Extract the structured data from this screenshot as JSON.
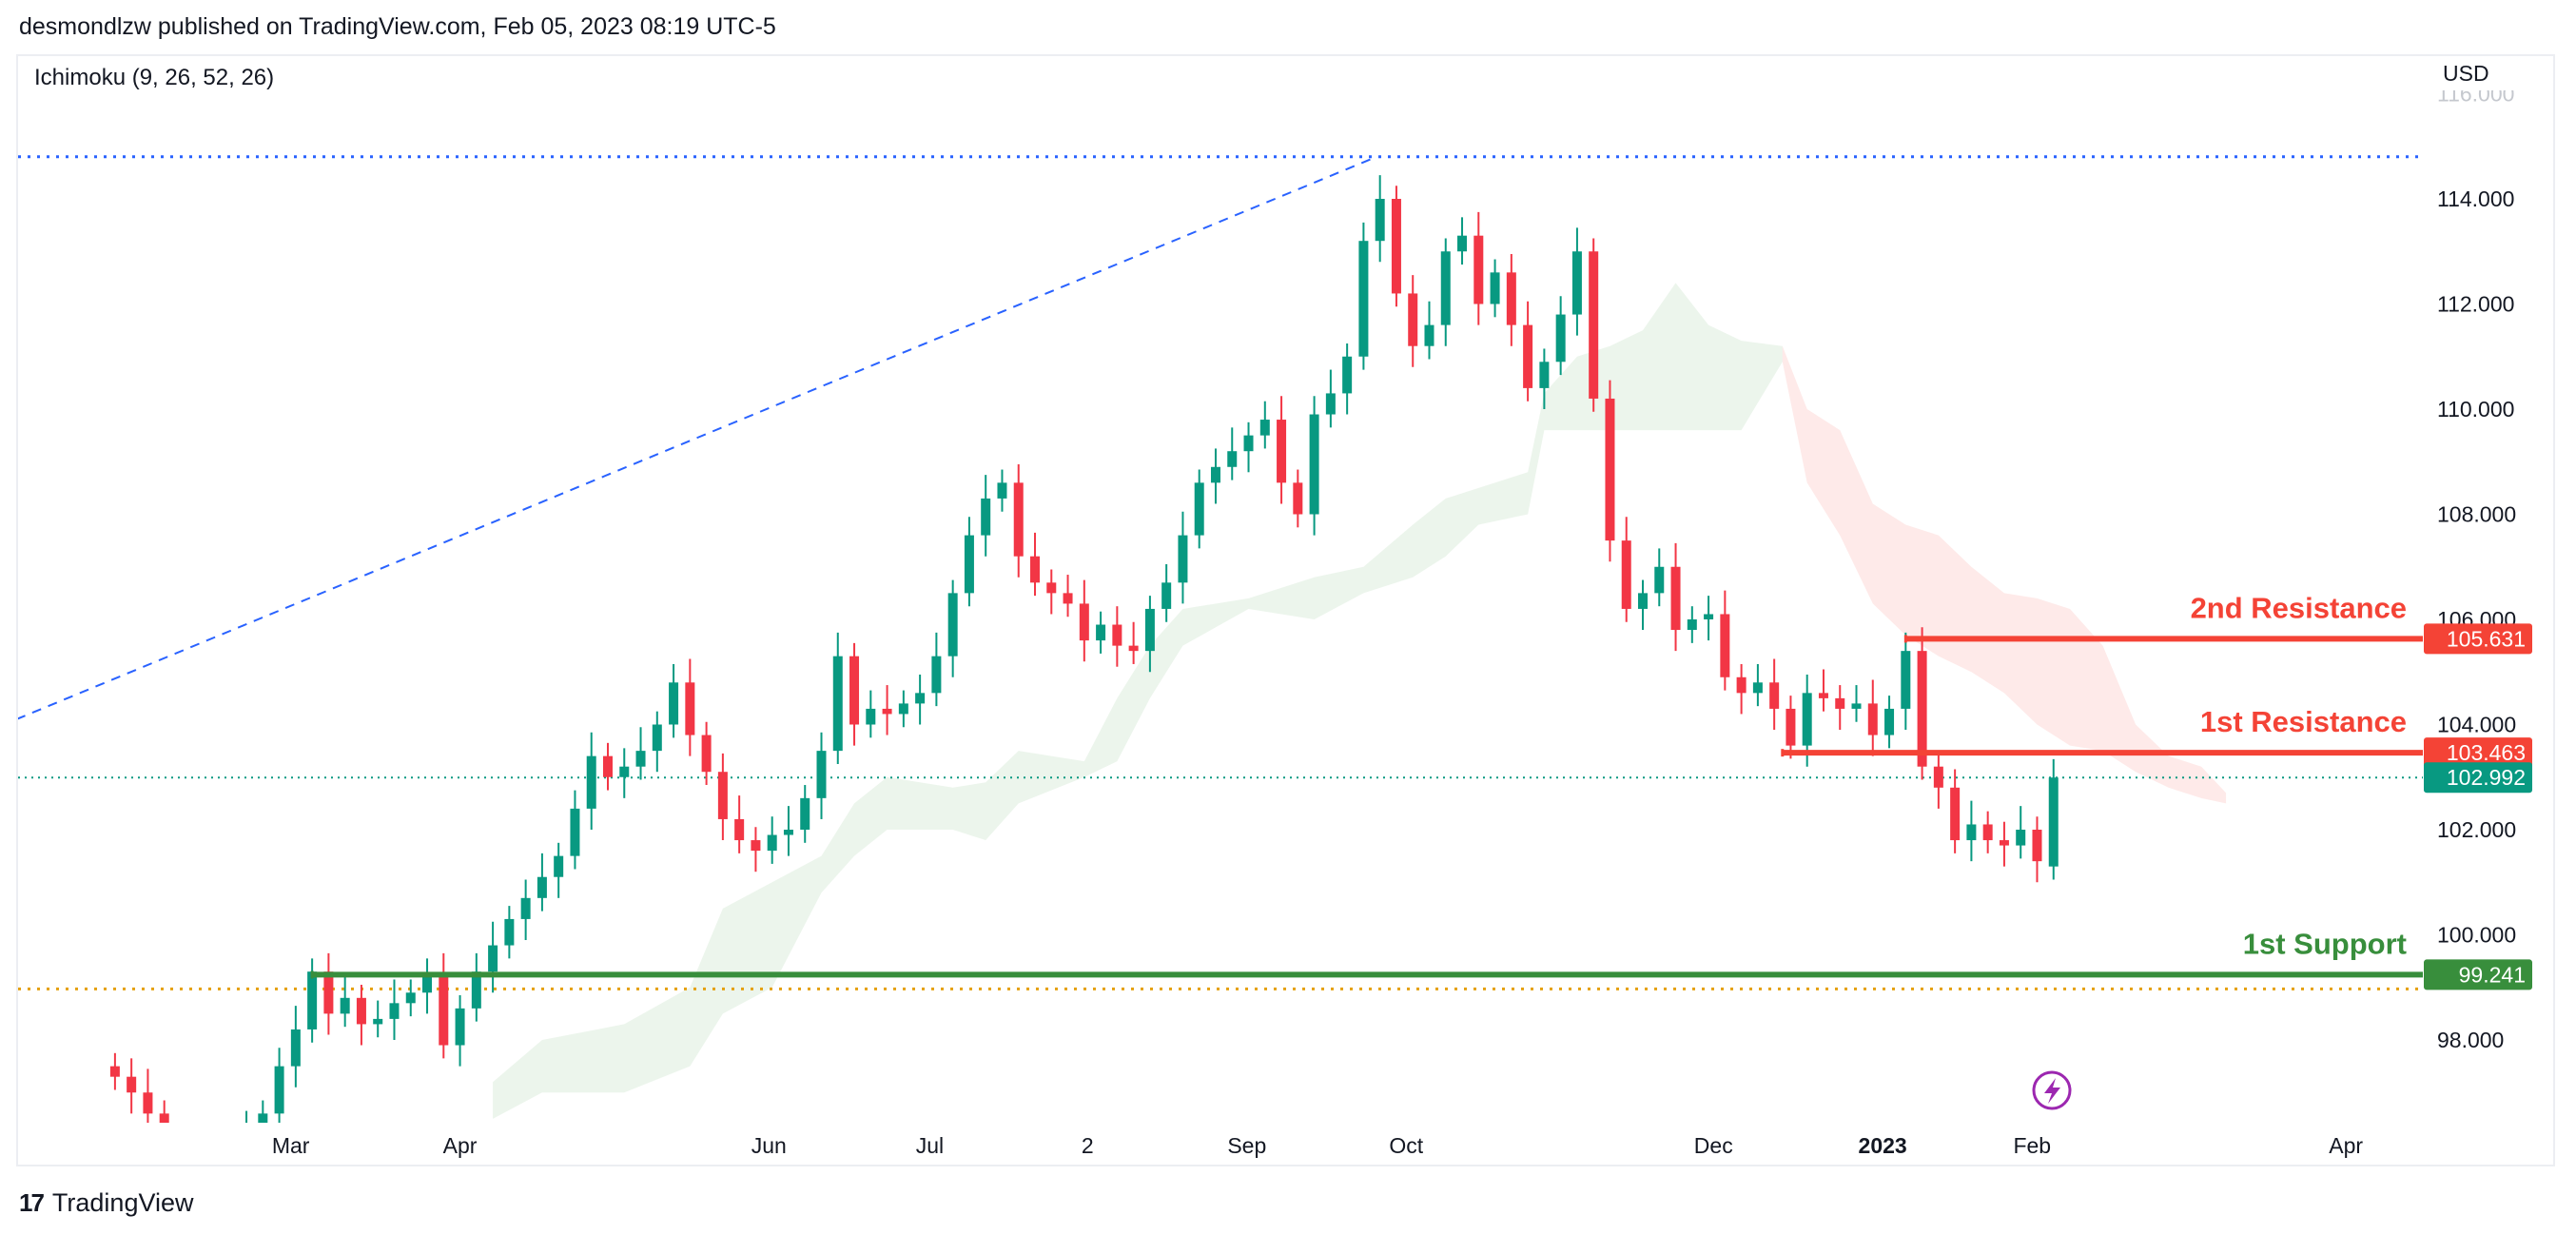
{
  "header": {
    "published": "desmondlzw published on TradingView.com, Feb 05, 2023 08:19 UTC-5"
  },
  "indicator": {
    "label": "Ichimoku (9, 26, 52, 26)"
  },
  "footer": {
    "brand": "TradingView",
    "logo_text": "17"
  },
  "colors": {
    "up": "#089981",
    "down": "#F23645",
    "resistance": "#F44336",
    "support": "#388E3C",
    "trend": "#2962FF",
    "orange": "#E5A00D",
    "last": "#089981",
    "cloud_green": "rgba(67,160,71,0.10)",
    "cloud_red": "rgba(244,67,54,0.11)",
    "event": "#9C27B0"
  },
  "chart_data": {
    "type": "candlestick",
    "currency": "USD",
    "y_ticks": [
      "116.000",
      "114.000",
      "112.000",
      "110.000",
      "108.000",
      "106.000",
      "104.000",
      "102.000",
      "100.000",
      "98.000"
    ],
    "y_tick_values": [
      116,
      114,
      112,
      110,
      108,
      106,
      104,
      102,
      100,
      98
    ],
    "ylim": [
      96.5,
      116.3
    ],
    "x_ticks": [
      {
        "label": "Mar",
        "pos": 177,
        "bold": false
      },
      {
        "label": "Apr",
        "pos": 280,
        "bold": false
      },
      {
        "label": "Jun",
        "pos": 468,
        "bold": false
      },
      {
        "label": "Jul",
        "pos": 566,
        "bold": false
      },
      {
        "label": "2",
        "pos": 662,
        "bold": false
      },
      {
        "label": "Sep",
        "pos": 759,
        "bold": false
      },
      {
        "label": "Oct",
        "pos": 856,
        "bold": false
      },
      {
        "label": "Dec",
        "pos": 1043,
        "bold": false
      },
      {
        "label": "2023",
        "pos": 1146,
        "bold": true
      },
      {
        "label": "Feb",
        "pos": 1237,
        "bold": false
      },
      {
        "label": "Apr",
        "pos": 1428,
        "bold": false
      }
    ],
    "bar_start": 70,
    "bar_step": 10,
    "closes": [
      97.3,
      97.0,
      96.6,
      96.0,
      95.8,
      95.5,
      95.7,
      95.9,
      96.2,
      96.6,
      97.5,
      98.2,
      99.3,
      98.5,
      98.8,
      98.3,
      98.4,
      98.7,
      98.9,
      99.2,
      97.9,
      98.6,
      99.3,
      99.8,
      100.3,
      100.7,
      101.1,
      101.5,
      102.4,
      103.4,
      103.0,
      103.2,
      103.5,
      104.0,
      104.8,
      103.8,
      103.1,
      102.2,
      101.8,
      101.6,
      101.9,
      102.0,
      102.6,
      103.5,
      105.3,
      104.0,
      104.3,
      104.2,
      104.4,
      104.6,
      105.3,
      106.5,
      107.6,
      108.3,
      108.6,
      107.2,
      106.7,
      106.5,
      106.3,
      105.6,
      105.9,
      105.5,
      105.4,
      106.2,
      106.7,
      107.6,
      108.6,
      108.9,
      109.2,
      109.5,
      109.8,
      108.6,
      108.0,
      109.9,
      110.3,
      111.0,
      113.2,
      114.0,
      112.2,
      111.2,
      111.6,
      113.0,
      113.3,
      112.0,
      112.6,
      111.6,
      110.4,
      110.9,
      111.8,
      113.0,
      110.2,
      107.5,
      106.2,
      106.5,
      107.0,
      105.8,
      106.0,
      106.1,
      104.9,
      104.6,
      104.8,
      104.3,
      103.6,
      104.6,
      104.5,
      104.3,
      104.4,
      103.8,
      104.3,
      105.4,
      103.2,
      102.8,
      101.8,
      102.1,
      101.8,
      101.7,
      102.0,
      101.4,
      102.992
    ],
    "cloud_green": [
      [
        300,
        96.5,
        97.2
      ],
      [
        330,
        97.0,
        98.0
      ],
      [
        380,
        97.0,
        98.3
      ],
      [
        420,
        97.5,
        99.0
      ],
      [
        440,
        98.5,
        100.5
      ],
      [
        470,
        99.0,
        101.0
      ],
      [
        500,
        100.8,
        101.5
      ],
      [
        520,
        101.5,
        102.5
      ],
      [
        540,
        102.0,
        103.0
      ],
      [
        580,
        102.0,
        102.8
      ],
      [
        600,
        101.8,
        102.9
      ],
      [
        620,
        102.5,
        103.5
      ],
      [
        660,
        103.0,
        103.3
      ],
      [
        680,
        103.3,
        104.5
      ],
      [
        700,
        104.5,
        105.5
      ],
      [
        720,
        105.5,
        106.2
      ],
      [
        760,
        106.2,
        106.4
      ],
      [
        800,
        106.0,
        106.8
      ],
      [
        830,
        106.5,
        107.0
      ],
      [
        860,
        106.8,
        107.8
      ],
      [
        880,
        107.2,
        108.3
      ],
      [
        900,
        107.8,
        108.5
      ],
      [
        930,
        108.0,
        108.8
      ],
      [
        940,
        109.6,
        110.3
      ],
      [
        960,
        109.6,
        111.0
      ],
      [
        980,
        109.6,
        111.2
      ],
      [
        1000,
        109.6,
        111.5
      ],
      [
        1020,
        109.6,
        112.4
      ],
      [
        1040,
        109.6,
        111.6
      ],
      [
        1060,
        109.6,
        111.3
      ],
      [
        1085,
        110.9,
        111.2
      ]
    ],
    "cloud_red": [
      [
        1085,
        110.9,
        111.2
      ],
      [
        1100,
        108.6,
        110.0
      ],
      [
        1120,
        107.6,
        109.6
      ],
      [
        1140,
        106.3,
        108.2
      ],
      [
        1160,
        105.7,
        107.8
      ],
      [
        1180,
        105.3,
        107.6
      ],
      [
        1200,
        105.0,
        107.0
      ],
      [
        1220,
        104.6,
        106.5
      ],
      [
        1240,
        104.0,
        106.4
      ],
      [
        1260,
        103.6,
        106.2
      ],
      [
        1280,
        103.5,
        105.5
      ],
      [
        1300,
        103.1,
        104.0
      ],
      [
        1320,
        102.8,
        103.4
      ],
      [
        1340,
        102.6,
        103.2
      ],
      [
        1355,
        102.5,
        102.7
      ]
    ],
    "levels": [
      {
        "name": "2nd Resistance",
        "value": 105.631,
        "label": "105.631",
        "start": 1160,
        "color": "#F44336"
      },
      {
        "name": "1st Resistance",
        "value": 103.463,
        "label": "103.463",
        "start": 1085,
        "color": "#F44336"
      },
      {
        "name": "1st Support",
        "value": 99.241,
        "label": "99.241",
        "start": 190,
        "color": "#388E3C"
      }
    ],
    "last_price": {
      "value": 102.992,
      "label": "102.992"
    },
    "high_line": 114.8,
    "low_dotted": 98.97,
    "trendline": {
      "from": [
        10,
        104.1
      ],
      "to": [
        838,
        114.8
      ]
    }
  }
}
